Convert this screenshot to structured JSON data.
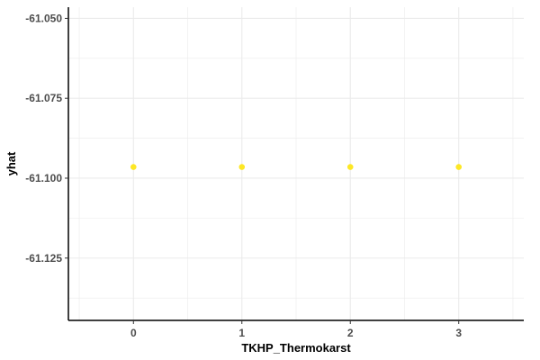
{
  "chart_data": {
    "type": "scatter",
    "title": "",
    "xlabel": "TKHP_Thermokarst",
    "ylabel": "yhat",
    "x": [
      0,
      1,
      2,
      3
    ],
    "series": [
      {
        "values": [
          -61.0965,
          -61.0965,
          -61.0965,
          -61.0965
        ]
      }
    ],
    "xlim": [
      -0.6,
      3.6
    ],
    "ylim": [
      -61.1445,
      -61.0465
    ],
    "x_ticks": [
      "0",
      "1",
      "2",
      "3"
    ],
    "y_ticks": [
      "-61.050",
      "-61.075",
      "-61.100",
      "-61.125"
    ],
    "grid": true,
    "legend": "none",
    "colors": {
      "point": "#FDE725",
      "grid": "#ebebeb",
      "axis": "#000000"
    }
  }
}
